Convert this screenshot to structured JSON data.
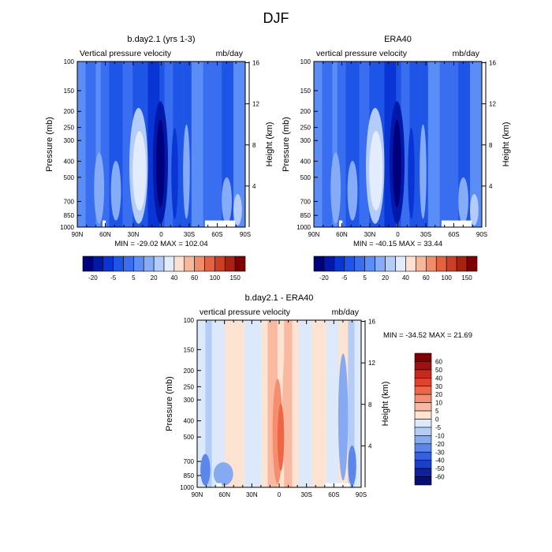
{
  "page_title": "DJF",
  "chart_data": [
    {
      "type": "heatmap",
      "id": "p1",
      "title": "b.day2.1 (yrs 1-3)",
      "left_label": "Vertical pressure velocity",
      "right_label": "mb/day",
      "xlabel": "",
      "ylabel": "Pressure (mb)",
      "y2label": "Height (km)",
      "x_ticks": [
        "90N",
        "60N",
        "30N",
        "0",
        "30S",
        "60S",
        "90S"
      ],
      "y_ticks": [
        "100",
        "150",
        "200",
        "250",
        "300",
        "400",
        "500",
        "700",
        "850",
        "1000"
      ],
      "y2_ticks": [
        "16",
        "12",
        "8",
        "4"
      ],
      "stats": "MIN = -29.02  MAX = 102.04",
      "colorbar_labels": [
        "-20",
        "-5",
        "5",
        "20",
        "40",
        "60",
        "100",
        "150"
      ]
    },
    {
      "type": "heatmap",
      "id": "p2",
      "title": "ERA40",
      "left_label": "vertical pressure velocity",
      "right_label": "mb/day",
      "xlabel": "",
      "ylabel": "Pressure (mb)",
      "y2label": "Height (km)",
      "x_ticks": [
        "90N",
        "60N",
        "30N",
        "0",
        "30S",
        "60S",
        "90S"
      ],
      "y_ticks": [
        "100",
        "150",
        "200",
        "250",
        "300",
        "400",
        "500",
        "700",
        "850",
        "1000"
      ],
      "y2_ticks": [
        "16",
        "12",
        "8",
        "4"
      ],
      "stats": "MIN = -40.15  MAX =  33.44",
      "colorbar_labels": [
        "-20",
        "-5",
        "5",
        "20",
        "40",
        "60",
        "100",
        "150"
      ]
    },
    {
      "type": "heatmap",
      "id": "p3",
      "title": "b.day2.1 - ERA40",
      "left_label": "vertical pressure velocity",
      "right_label": "mb/day",
      "xlabel": "",
      "ylabel": "Pressure (mb)",
      "y2label": "Height (km)",
      "x_ticks": [
        "90N",
        "60N",
        "30N",
        "0",
        "30S",
        "60S",
        "90S"
      ],
      "y_ticks": [
        "100",
        "150",
        "200",
        "250",
        "300",
        "400",
        "500",
        "700",
        "850",
        "1000"
      ],
      "y2_ticks": [
        "16",
        "12",
        "8",
        "4"
      ],
      "stats": "MIN = -34.52  MAX =  21.69",
      "colorbar_labels": [
        "60",
        "50",
        "40",
        "30",
        "20",
        "10",
        "5",
        "0",
        "-5",
        "-10",
        "-20",
        "-30",
        "-40",
        "-50",
        "-60"
      ]
    }
  ],
  "colors": {
    "top_scale": [
      "#00007f",
      "#0019a8",
      "#0835d4",
      "#1e55e6",
      "#3a6ef0",
      "#5a8df5",
      "#86acf7",
      "#b4ccf9",
      "#e2ecfd",
      "#fde0d0",
      "#f6b89c",
      "#f08c68",
      "#e4623f",
      "#cc3f24",
      "#a82212",
      "#800000"
    ],
    "diff_scale": [
      "#800000",
      "#a30f0f",
      "#c8281a",
      "#e0432c",
      "#ee6647",
      "#f58e6e",
      "#f9b9a0",
      "#fde3d2",
      "#dbe9fb",
      "#b4cdf7",
      "#86aaf1",
      "#5b86ea",
      "#3661de",
      "#1a3fc9",
      "#0f21a0",
      "#050e75"
    ]
  }
}
